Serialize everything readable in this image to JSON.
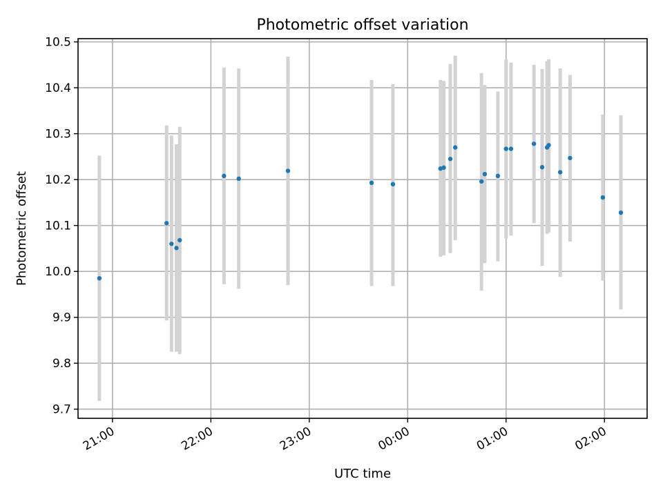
{
  "chart_data": {
    "type": "scatter",
    "title": "Photometric offset variation",
    "xlabel": "UTC time",
    "ylabel": "Photometric offset",
    "grid": true,
    "x_ticks": [
      {
        "value": "21:00",
        "label": "21:00"
      },
      {
        "value": "22:00",
        "label": "22:00"
      },
      {
        "value": "23:00",
        "label": "23:00"
      },
      {
        "value": "24:00",
        "label": "00:00"
      },
      {
        "value": "25:00",
        "label": "01:00"
      },
      {
        "value": "26:00",
        "label": "02:00"
      }
    ],
    "y_ticks": [
      "9.7",
      "9.8",
      "9.9",
      "10.0",
      "10.1",
      "10.2",
      "10.3",
      "10.4",
      "10.5"
    ],
    "xlim": [
      "20:39",
      "26:26"
    ],
    "ylim": [
      9.68,
      10.507
    ],
    "colors": {
      "marker": "#1f77b4",
      "errorbar": "#d3d3d3",
      "grid": "#b0b0b0"
    },
    "points": [
      {
        "x": "20:52",
        "y": 9.985,
        "low": 9.718,
        "high": 10.252
      },
      {
        "x": "21:33",
        "y": 10.105,
        "low": 9.893,
        "high": 10.318
      },
      {
        "x": "21:36",
        "y": 10.06,
        "low": 9.825,
        "high": 10.296
      },
      {
        "x": "21:39",
        "y": 10.051,
        "low": 9.825,
        "high": 10.277
      },
      {
        "x": "21:41",
        "y": 10.068,
        "low": 9.82,
        "high": 10.315
      },
      {
        "x": "22:08",
        "y": 10.208,
        "low": 9.972,
        "high": 10.444
      },
      {
        "x": "22:17",
        "y": 10.202,
        "low": 9.962,
        "high": 10.442
      },
      {
        "x": "22:47",
        "y": 10.219,
        "low": 9.97,
        "high": 10.468
      },
      {
        "x": "23:38",
        "y": 10.193,
        "low": 9.968,
        "high": 10.417
      },
      {
        "x": "23:51",
        "y": 10.19,
        "low": 9.968,
        "high": 10.408
      },
      {
        "x": "24:20",
        "y": 10.224,
        "low": 10.032,
        "high": 10.417
      },
      {
        "x": "24:22",
        "y": 10.226,
        "low": 10.035,
        "high": 10.415
      },
      {
        "x": "24:26",
        "y": 10.245,
        "low": 10.04,
        "high": 10.452
      },
      {
        "x": "24:29",
        "y": 10.27,
        "low": 10.068,
        "high": 10.47
      },
      {
        "x": "24:45",
        "y": 10.196,
        "low": 9.958,
        "high": 10.432
      },
      {
        "x": "24:47",
        "y": 10.212,
        "low": 10.018,
        "high": 10.406
      },
      {
        "x": "24:55",
        "y": 10.208,
        "low": 10.022,
        "high": 10.392
      },
      {
        "x": "25:00",
        "y": 10.267,
        "low": 10.072,
        "high": 10.462
      },
      {
        "x": "25:03",
        "y": 10.267,
        "low": 10.078,
        "high": 10.455
      },
      {
        "x": "25:17",
        "y": 10.278,
        "low": 10.105,
        "high": 10.45
      },
      {
        "x": "25:22",
        "y": 10.227,
        "low": 10.012,
        "high": 10.441
      },
      {
        "x": "25:25",
        "y": 10.27,
        "low": 10.082,
        "high": 10.458
      },
      {
        "x": "25:26",
        "y": 10.275,
        "low": 10.085,
        "high": 10.462
      },
      {
        "x": "25:33",
        "y": 10.216,
        "low": 9.988,
        "high": 10.442
      },
      {
        "x": "25:39",
        "y": 10.247,
        "low": 10.065,
        "high": 10.428
      },
      {
        "x": "25:59",
        "y": 10.161,
        "low": 9.98,
        "high": 10.342
      },
      {
        "x": "26:10",
        "y": 10.128,
        "low": 9.917,
        "high": 10.34
      }
    ]
  }
}
